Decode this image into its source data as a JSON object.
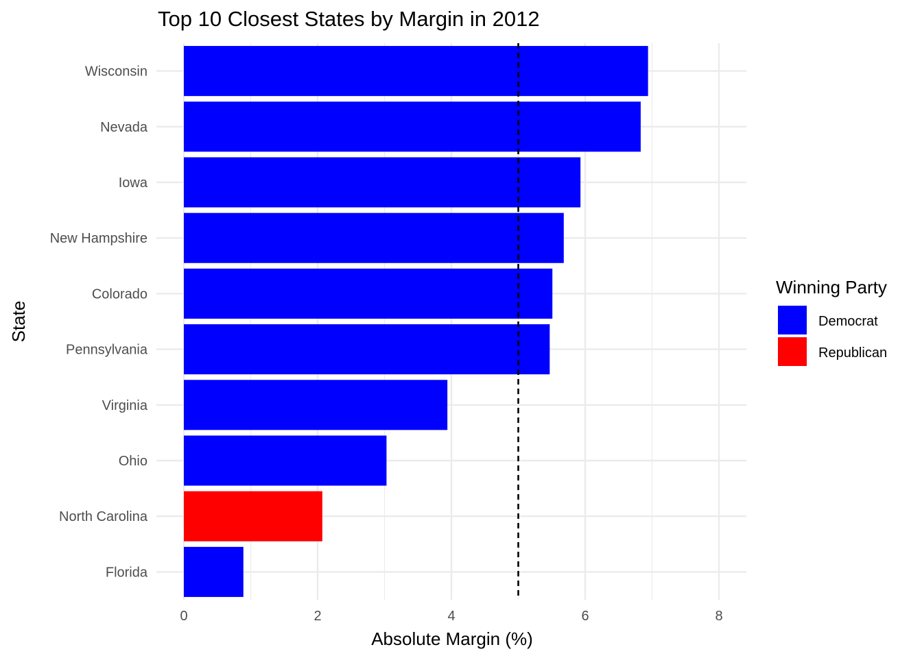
{
  "chart_data": {
    "type": "bar",
    "orientation": "horizontal",
    "title": "Top 10 Closest States by Margin in 2012",
    "xlabel": "Absolute Margin (%)",
    "ylabel": "State",
    "xlim": [
      0,
      8.4
    ],
    "xticks": [
      0,
      2,
      4,
      6,
      8
    ],
    "grid": true,
    "reference_line": {
      "x": 5,
      "style": "dashed",
      "color": "#000000"
    },
    "categories": [
      "Wisconsin",
      "Nevada",
      "Iowa",
      "New Hampshire",
      "Colorado",
      "Pennsylvania",
      "Virginia",
      "Ohio",
      "North Carolina",
      "Florida"
    ],
    "values": [
      6.94,
      6.83,
      5.93,
      5.68,
      5.51,
      5.47,
      3.94,
      3.03,
      2.07,
      0.89
    ],
    "party": [
      "Democrat",
      "Democrat",
      "Democrat",
      "Democrat",
      "Democrat",
      "Democrat",
      "Democrat",
      "Democrat",
      "Republican",
      "Democrat"
    ],
    "legend": {
      "title": "Winning Party",
      "position": "right",
      "items": [
        {
          "label": "Democrat",
          "color": "#0000ff"
        },
        {
          "label": "Republican",
          "color": "#ff0000"
        }
      ]
    }
  }
}
